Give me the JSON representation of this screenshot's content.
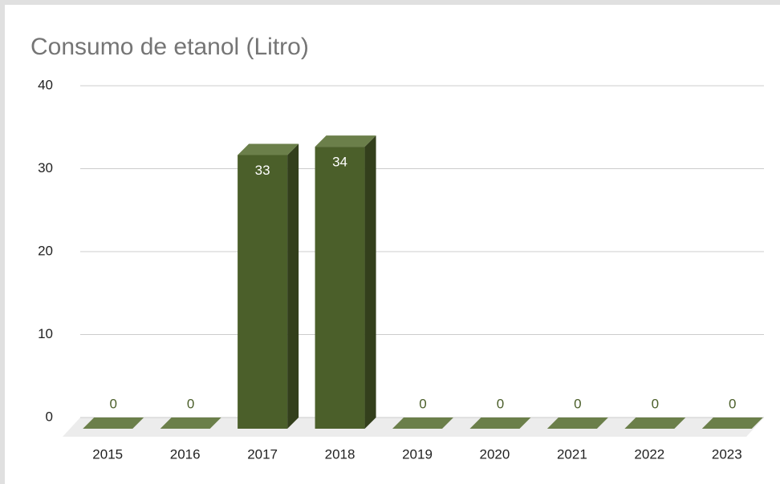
{
  "chart_data": {
    "type": "bar3d",
    "title": "Consumo de etanol (Litro)",
    "categories": [
      "2015",
      "2016",
      "2017",
      "2018",
      "2019",
      "2020",
      "2021",
      "2022",
      "2023"
    ],
    "values": [
      0,
      0,
      33,
      34,
      0,
      0,
      0,
      0,
      0
    ],
    "color": "#4b5f2a",
    "ylim": [
      0,
      40
    ],
    "yticks": [
      0,
      10,
      20,
      30,
      40
    ],
    "grid": true
  }
}
